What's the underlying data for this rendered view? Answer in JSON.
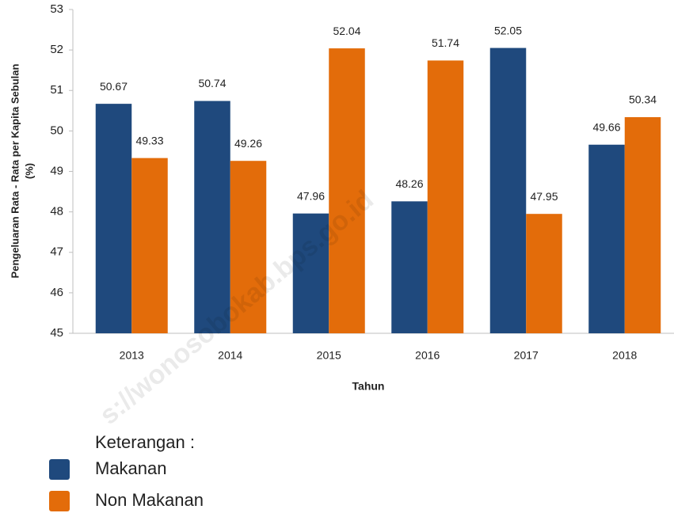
{
  "chart_data": {
    "type": "bar",
    "categories": [
      "2013",
      "2014",
      "2015",
      "2016",
      "2017",
      "2018"
    ],
    "series": [
      {
        "name": "Makanan",
        "color": "#1f497d",
        "values": [
          50.67,
          50.74,
          47.96,
          48.26,
          52.05,
          49.66
        ]
      },
      {
        "name": "Non Makanan",
        "color": "#e36c0a",
        "values": [
          49.33,
          49.26,
          52.04,
          51.74,
          47.95,
          50.34
        ]
      }
    ],
    "ylim": [
      45,
      53
    ],
    "yticks": [
      45,
      46,
      47,
      48,
      49,
      50,
      51,
      52,
      53
    ],
    "x_label": "Tahun",
    "y_label": [
      "Pengeluaran Rata - Rata per Kapita Sebulan",
      "(%)"
    ],
    "legend_title": "Keterangan :",
    "watermark": "s://wonosobokab.bps.go.id",
    "grid": false
  }
}
